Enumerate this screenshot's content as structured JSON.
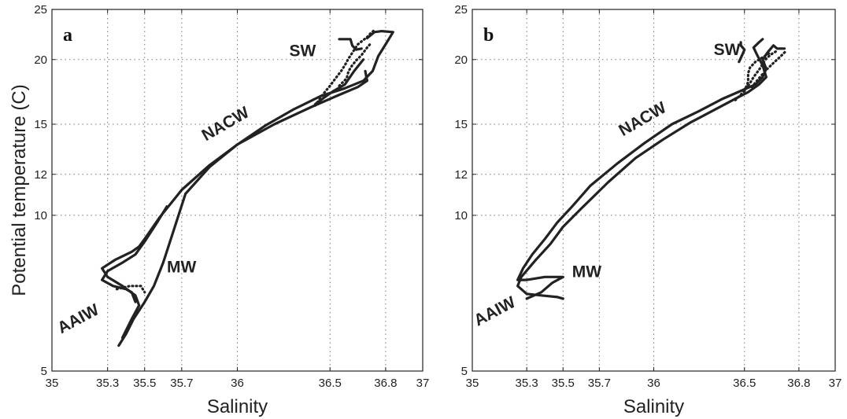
{
  "chart_data": [
    {
      "type": "line",
      "panel_label": "a",
      "xlabel": "Salinity",
      "ylabel": "Potential temperature (C)",
      "xlim": [
        35,
        37
      ],
      "ylim": [
        5,
        25
      ],
      "y_scale": "log",
      "x_ticks": [
        "35",
        "35.3",
        "35.5",
        "35.7",
        "36",
        "36.5",
        "36.8",
        "37"
      ],
      "y_ticks": [
        "5",
        "10",
        "12",
        "15",
        "20",
        "25"
      ],
      "grid": true,
      "annotations": [
        {
          "text": "SW",
          "x": 36.28,
          "y": 20.3
        },
        {
          "text": "NACW",
          "x": 35.83,
          "y": 13.9
        },
        {
          "text": "MW",
          "x": 35.62,
          "y": 7.75
        },
        {
          "text": "AAIW",
          "x": 35.05,
          "y": 5.9
        }
      ],
      "series": [
        {
          "style": "solid",
          "x": [
            35.36,
            35.4,
            35.44,
            35.5,
            35.55,
            35.6,
            35.65,
            35.72,
            35.85,
            36.0,
            36.15,
            36.3,
            36.45,
            36.58,
            36.68,
            36.73,
            36.76,
            36.8,
            36.83,
            36.84,
            36.78,
            36.74,
            36.72,
            36.7
          ],
          "y": [
            5.6,
            5.9,
            6.3,
            6.8,
            7.3,
            8.1,
            9.2,
            11.0,
            12.4,
            13.7,
            14.9,
            16.0,
            17.0,
            17.6,
            18.2,
            19.0,
            20.3,
            21.4,
            22.3,
            22.6,
            22.7,
            22.6,
            22.3,
            22.0
          ]
        },
        {
          "style": "solid",
          "x": [
            35.38,
            35.43,
            35.47,
            35.45,
            35.38,
            35.3,
            35.27,
            35.34,
            35.43,
            35.47,
            35.5,
            35.58,
            35.7,
            35.85,
            36.0,
            36.2,
            36.4,
            36.55,
            36.65,
            36.7,
            36.69
          ],
          "y": [
            5.8,
            6.3,
            6.7,
            7.0,
            7.3,
            7.6,
            7.9,
            8.2,
            8.5,
            8.7,
            9.0,
            9.9,
            11.2,
            12.5,
            13.7,
            15.0,
            16.2,
            17.1,
            17.7,
            18.2,
            19.0
          ]
        },
        {
          "style": "solid",
          "x": [
            35.45,
            35.43,
            35.4,
            35.33,
            35.27,
            35.3,
            35.38,
            35.45,
            35.5,
            35.56,
            35.62
          ],
          "y": [
            6.8,
            7.1,
            7.2,
            7.3,
            7.5,
            7.8,
            8.1,
            8.4,
            8.9,
            9.6,
            10.4
          ]
        },
        {
          "style": "solid",
          "x": [
            36.52,
            36.58,
            36.63,
            36.66,
            36.68
          ],
          "y": [
            17.4,
            17.9,
            19.0,
            19.6,
            20.0
          ]
        },
        {
          "style": "solid",
          "x": [
            36.42,
            36.48,
            36.52
          ],
          "y": [
            16.4,
            17.0,
            17.4
          ]
        },
        {
          "style": "solid",
          "x": [
            36.55,
            36.61,
            36.62,
            36.64,
            36.67
          ],
          "y": [
            21.9,
            21.9,
            21.3,
            20.9,
            21.0
          ]
        },
        {
          "style": "dotted",
          "x": [
            36.42,
            36.46,
            36.5,
            36.53,
            36.56,
            36.58,
            36.6,
            36.62,
            36.65,
            36.7,
            36.72,
            36.74
          ],
          "y": [
            16.3,
            17.1,
            17.8,
            18.4,
            19.0,
            19.5,
            20.1,
            20.6,
            21.4,
            22.1,
            22.5,
            22.8
          ]
        },
        {
          "style": "dotted",
          "x": [
            36.55,
            36.59,
            36.6,
            36.62,
            36.64,
            36.67,
            36.7,
            36.72
          ],
          "y": [
            17.8,
            18.4,
            19.0,
            19.5,
            19.9,
            20.4,
            21.1,
            21.5
          ]
        },
        {
          "style": "dotted",
          "x": [
            35.35,
            35.42,
            35.48,
            35.5
          ],
          "y": [
            7.2,
            7.3,
            7.3,
            7.1
          ]
        }
      ]
    },
    {
      "type": "line",
      "panel_label": "b",
      "xlabel": "Salinity",
      "ylabel": "",
      "xlim": [
        35,
        37
      ],
      "ylim": [
        5,
        25
      ],
      "y_scale": "log",
      "x_ticks": [
        "35",
        "35.3",
        "35.5",
        "35.7",
        "36",
        "36.5",
        "36.8",
        "37"
      ],
      "y_ticks": [
        "5",
        "10",
        "12",
        "15",
        "20",
        "25"
      ],
      "grid": true,
      "annotations": [
        {
          "text": "SW",
          "x": 36.33,
          "y": 20.4
        },
        {
          "text": "NACW",
          "x": 35.83,
          "y": 14.2
        },
        {
          "text": "MW",
          "x": 35.55,
          "y": 7.6
        },
        {
          "text": "AAIW",
          "x": 35.03,
          "y": 6.1
        }
      ],
      "series": [
        {
          "style": "solid",
          "x": [
            35.3,
            35.38,
            35.44,
            35.5,
            35.4,
            35.3,
            35.25,
            35.28,
            35.33,
            35.4,
            35.47,
            35.55,
            35.65,
            35.8,
            35.95,
            36.1,
            36.25,
            36.38,
            36.48,
            36.56,
            36.6,
            36.62,
            36.6,
            36.63,
            36.66,
            36.68,
            36.72
          ],
          "y": [
            6.9,
            7.1,
            7.4,
            7.6,
            7.6,
            7.5,
            7.5,
            7.9,
            8.4,
            9.0,
            9.7,
            10.4,
            11.4,
            12.6,
            13.8,
            15.0,
            15.9,
            16.8,
            17.4,
            17.9,
            18.5,
            19.2,
            20.0,
            20.7,
            21.3,
            21.0,
            21.0
          ]
        },
        {
          "style": "solid",
          "x": [
            35.5,
            35.47,
            35.38,
            35.3,
            35.25,
            35.27,
            35.35,
            35.43,
            35.5,
            35.6,
            35.75,
            35.9,
            36.05,
            36.2,
            36.35,
            36.45,
            36.52,
            36.58,
            36.62,
            36.6,
            36.57,
            36.55,
            36.58,
            36.6
          ],
          "y": [
            6.9,
            6.95,
            7.0,
            7.05,
            7.3,
            7.6,
            8.2,
            8.8,
            9.5,
            10.3,
            11.6,
            12.9,
            14.0,
            15.1,
            16.1,
            16.8,
            17.3,
            17.9,
            18.5,
            19.5,
            20.4,
            21.1,
            21.6,
            21.9
          ]
        },
        {
          "style": "solid",
          "x": [
            36.47,
            36.49,
            36.5,
            36.48,
            36.48
          ],
          "y": [
            19.8,
            20.5,
            20.9,
            21.3,
            21.6
          ]
        },
        {
          "style": "dotted",
          "x": [
            36.45,
            36.5,
            36.53,
            36.55,
            36.58,
            36.6,
            36.62,
            36.65,
            36.68
          ],
          "y": [
            16.7,
            17.4,
            18.0,
            18.5,
            19.1,
            19.6,
            20.1,
            20.5,
            20.8
          ]
        },
        {
          "style": "dotted",
          "x": [
            36.5,
            36.52,
            36.52,
            36.53,
            36.56,
            36.6,
            36.64
          ],
          "y": [
            17.4,
            18.1,
            18.8,
            19.3,
            19.8,
            20.2,
            20.6
          ]
        },
        {
          "style": "dotted",
          "x": [
            36.54,
            36.58,
            36.62,
            36.66,
            36.7,
            36.73
          ],
          "y": [
            17.7,
            18.4,
            19.1,
            19.7,
            20.3,
            20.8
          ]
        }
      ]
    }
  ]
}
